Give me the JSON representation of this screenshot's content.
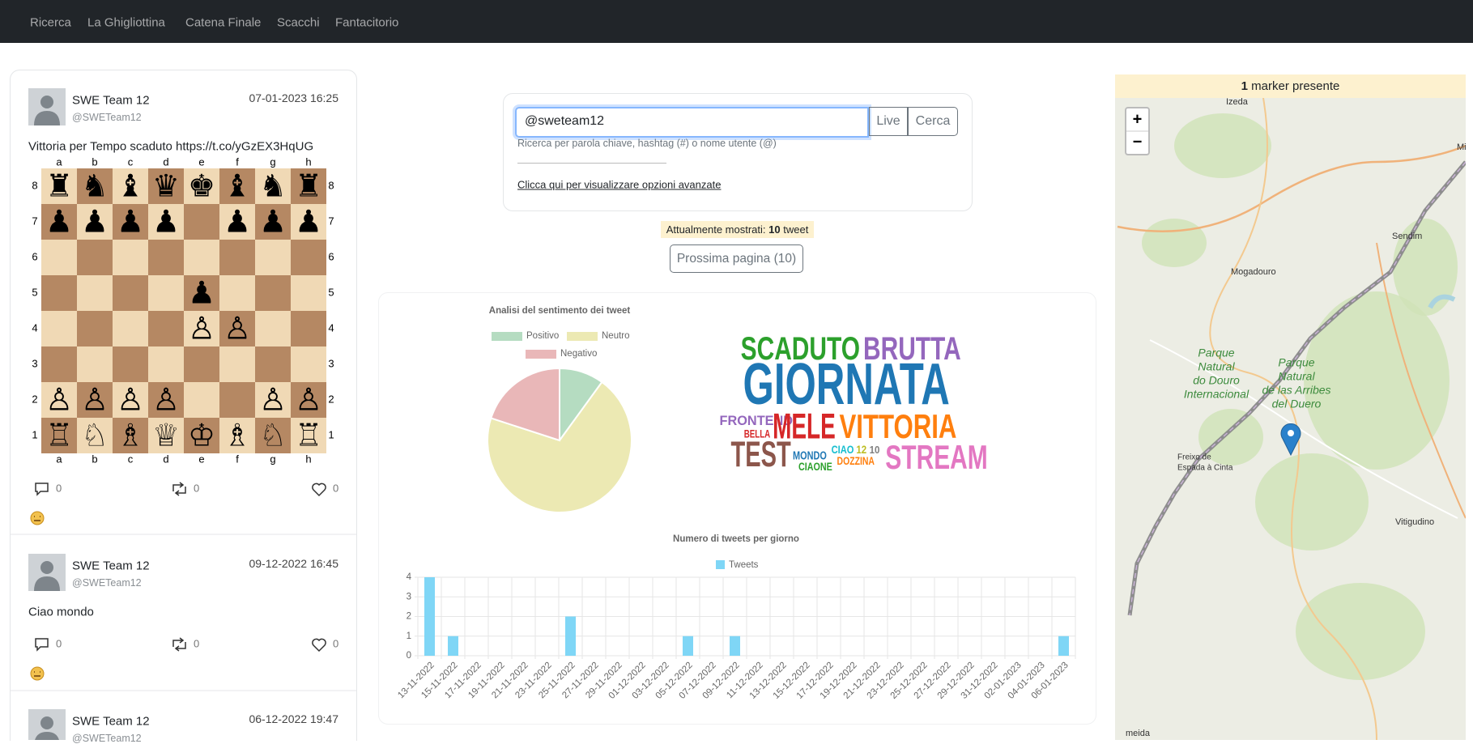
{
  "navbar": {
    "items": [
      "Ricerca",
      "La Ghigliottina",
      "Catena Finale",
      "Scacchi",
      "Fantacitorio"
    ]
  },
  "tweets": [
    {
      "name": "SWE Team 12",
      "handle": "@SWETeam12",
      "date": "07-01-2023 16:25",
      "text": "Vittoria per Tempo scaduto https://t.co/yGzEX3HqUG",
      "chess": {
        "files": [
          "a",
          "b",
          "c",
          "d",
          "e",
          "f",
          "g",
          "h"
        ],
        "ranks": [
          8,
          7,
          6,
          5,
          4,
          3,
          2,
          1
        ],
        "rows": [
          "rnbqkbnr",
          "pppp.ppp",
          "........",
          "....p...",
          "....PP..",
          "........",
          "PPPP..PP",
          "RNBQKBNR"
        ]
      },
      "comments": 0,
      "retweets": 0,
      "likes": 0
    },
    {
      "name": "SWE Team 12",
      "handle": "@SWETeam12",
      "date": "09-12-2022 16:45",
      "text": "Ciao mondo",
      "comments": 0,
      "retweets": 0,
      "likes": 0
    },
    {
      "name": "SWE Team 12",
      "handle": "@SWETeam12",
      "date": "06-12-2022 19:47"
    }
  ],
  "search": {
    "value": "@sweteam12",
    "live": "Live",
    "submit": "Cerca",
    "hint": "Ricerca per parola chiave, hashtag (#) o nome utente (@)",
    "advanced": "Clicca qui per visualizzare opzioni avanzate"
  },
  "status": {
    "prefix": "Attualmente mostrati:",
    "count": 10,
    "suffix": "tweet"
  },
  "next_page": "Prossima pagina (10)",
  "sentiment_chart": {
    "type": "pie",
    "title": "Analisi del sentimento dei tweet",
    "categories": [
      "Positivo",
      "Neutro",
      "Negativo"
    ],
    "values": [
      1,
      7,
      2
    ],
    "colors": [
      "#b5dcc1",
      "#ece9b3",
      "#e9b7b8"
    ]
  },
  "wordcloud": {
    "words": [
      {
        "text": "SCADUTO",
        "color": "#2ca02c"
      },
      {
        "text": "BRUTTA",
        "color": "#9467bd"
      },
      {
        "text": "GIORNATA",
        "color": "#1f77b4"
      },
      {
        "text": "FRONTEND",
        "color": "#9467bd"
      },
      {
        "text": "BELLA",
        "color": "#d62728"
      },
      {
        "text": "MELE",
        "color": "#d62728"
      },
      {
        "text": "VITTORIA",
        "color": "#ff7f0e"
      },
      {
        "text": "TEST",
        "color": "#8c564b"
      },
      {
        "text": "MONDO",
        "color": "#1f77b4"
      },
      {
        "text": "CIAO",
        "color": "#17becf"
      },
      {
        "text": "12",
        "color": "#bcbd22"
      },
      {
        "text": "10",
        "color": "#7f7f7f"
      },
      {
        "text": "CIAONE",
        "color": "#2ca02c"
      },
      {
        "text": "DOZZINA",
        "color": "#ff7f0e"
      },
      {
        "text": "STREAM",
        "color": "#e377c2"
      }
    ]
  },
  "daily_chart": {
    "type": "bar",
    "title": "Numero di tweets per giorno",
    "categories": [
      "13-11-2022",
      "15-11-2022",
      "17-11-2022",
      "19-11-2022",
      "21-11-2022",
      "23-11-2022",
      "25-11-2022",
      "27-11-2022",
      "29-11-2022",
      "01-12-2022",
      "03-12-2022",
      "05-12-2022",
      "07-12-2022",
      "09-12-2022",
      "11-12-2022",
      "13-12-2022",
      "15-12-2022",
      "17-12-2022",
      "19-12-2022",
      "21-12-2022",
      "23-12-2022",
      "25-12-2022",
      "27-12-2022",
      "29-12-2022",
      "31-12-2022",
      "02-01-2023",
      "04-01-2023",
      "06-01-2023"
    ],
    "series": [
      {
        "name": "Tweets",
        "color": "#7fd6f6",
        "values": [
          4,
          1,
          0,
          0,
          0,
          0,
          2,
          0,
          0,
          0,
          0,
          1,
          0,
          1,
          0,
          0,
          0,
          0,
          0,
          0,
          0,
          0,
          0,
          0,
          0,
          0,
          0,
          1
        ]
      }
    ],
    "ylim": [
      0,
      4
    ],
    "yticks": [
      0,
      1,
      2,
      3,
      4
    ],
    "grid": true
  },
  "map": {
    "count": 1,
    "count_text": "marker presente",
    "zoom_in": "+",
    "zoom_out": "−",
    "labels": [
      [
        "Izeda"
      ],
      [
        "Mi"
      ],
      [
        "Sendim"
      ],
      [
        "Mogadouro"
      ],
      [
        "Parque",
        "Natural",
        "do Douro",
        "Internacional"
      ],
      [
        "Parque",
        "Natural",
        "de las Arribes",
        "del Duero"
      ],
      [
        "Freixo de",
        "Espada à Cinta"
      ],
      [
        "Vitigudino"
      ],
      [
        "meida"
      ]
    ]
  }
}
